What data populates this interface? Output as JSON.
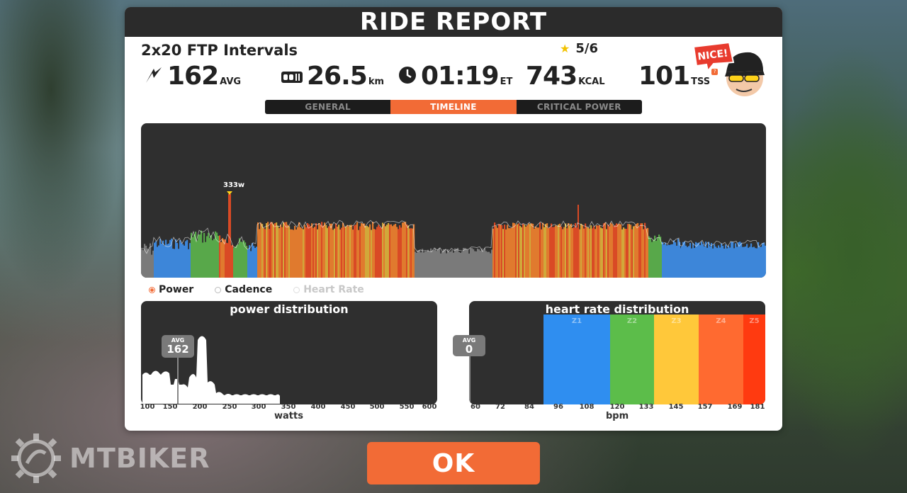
{
  "header": {
    "title": "RIDE REPORT"
  },
  "workout": {
    "name": "2x20 FTP Intervals",
    "rating": "5/6"
  },
  "stats": {
    "avg_power": {
      "value": "162",
      "unit": "AVG"
    },
    "distance": {
      "value": "26.5",
      "unit": "km"
    },
    "elapsed": {
      "value": "01:19",
      "unit": "ET"
    },
    "calories": {
      "value": "743",
      "unit": "KCAL"
    },
    "tss": {
      "value": "101",
      "unit": "TSS",
      "info": "?"
    }
  },
  "tabs": [
    {
      "label": "GENERAL",
      "active": false
    },
    {
      "label": "TIMELINE",
      "active": true
    },
    {
      "label": "CRITICAL POWER",
      "active": false
    }
  ],
  "timeline": {
    "peak_label": "333w",
    "legend": [
      "Power",
      "Cadence",
      "Heart Rate"
    ]
  },
  "power_distribution": {
    "title": "power distribution",
    "avg_label": "AVG",
    "avg_value": "162",
    "x_ticks": [
      "100",
      "150",
      "200",
      "250",
      "300",
      "350",
      "400",
      "450",
      "500",
      "550",
      "600"
    ],
    "x_label": "watts"
  },
  "hr_distribution": {
    "title": "heart rate distribution",
    "avg_label": "AVG",
    "avg_value": "0",
    "x_ticks": [
      "60",
      "72",
      "84",
      "96",
      "108",
      "120",
      "133",
      "145",
      "157",
      "169",
      "181"
    ],
    "x_label": "bpm",
    "zones": [
      "Z1",
      "Z2",
      "Z3",
      "Z4",
      "Z5"
    ]
  },
  "mascot": {
    "badge": "NICE!"
  },
  "ok_button": {
    "label": "OK"
  },
  "watermark": {
    "text": "MTBIKER"
  },
  "colors": {
    "accent": "#f26b36",
    "zone_gray": "#7a7a7a",
    "zone_blue": "#3d86d9",
    "zone_green": "#58a84a",
    "zone_yellow": "#d1a83a",
    "zone_orange": "#e07a2e",
    "zone_red": "#d94a25",
    "hr_z1": "#2f8ef0",
    "hr_z2": "#5cbd4a",
    "hr_z3": "#ffc83a",
    "hr_z4": "#ff6a30",
    "hr_z5": "#ff3a10"
  }
}
